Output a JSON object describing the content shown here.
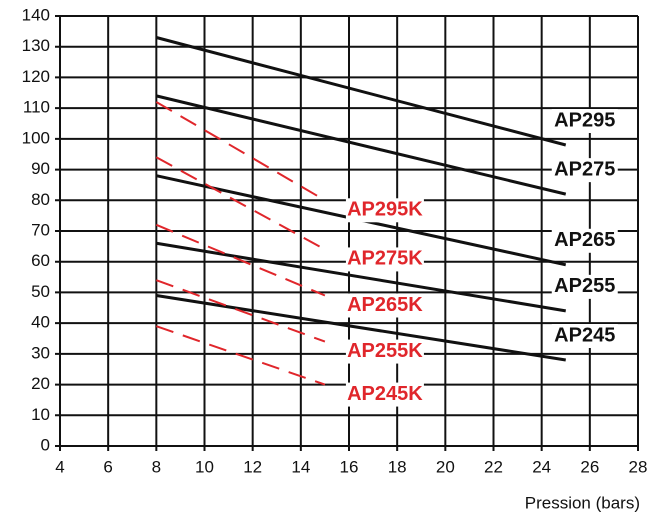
{
  "chart_data": {
    "type": "line",
    "x_label": "Pression (bars)",
    "xlim": [
      4,
      28
    ],
    "xticks": [
      4,
      6,
      8,
      10,
      12,
      14,
      16,
      18,
      20,
      22,
      24,
      26,
      28
    ],
    "ylim": [
      0,
      140
    ],
    "yticks": [
      0,
      10,
      20,
      30,
      40,
      50,
      60,
      70,
      80,
      90,
      100,
      110,
      120,
      130,
      140
    ],
    "grid": true,
    "series": [
      {
        "name": "AP295",
        "color": "#111111",
        "dashed": false,
        "x": [
          8,
          25
        ],
        "values": [
          133,
          98
        ]
      },
      {
        "name": "AP275",
        "color": "#111111",
        "dashed": false,
        "x": [
          8,
          25
        ],
        "values": [
          114,
          82
        ]
      },
      {
        "name": "AP265",
        "color": "#111111",
        "dashed": false,
        "x": [
          8,
          25
        ],
        "values": [
          88,
          59
        ]
      },
      {
        "name": "AP255",
        "color": "#111111",
        "dashed": false,
        "x": [
          8,
          25
        ],
        "values": [
          66,
          44
        ]
      },
      {
        "name": "AP245",
        "color": "#111111",
        "dashed": false,
        "x": [
          8,
          25
        ],
        "values": [
          49,
          28
        ]
      },
      {
        "name": "AP295K",
        "color": "#e0262b",
        "dashed": true,
        "x": [
          8,
          15
        ],
        "values": [
          112,
          80
        ]
      },
      {
        "name": "AP275K",
        "color": "#e0262b",
        "dashed": true,
        "x": [
          8,
          15
        ],
        "values": [
          94,
          64
        ]
      },
      {
        "name": "AP265K",
        "color": "#e0262b",
        "dashed": true,
        "x": [
          8,
          15
        ],
        "values": [
          72,
          49
        ]
      },
      {
        "name": "AP255K",
        "color": "#e0262b",
        "dashed": true,
        "x": [
          8,
          15
        ],
        "values": [
          54,
          34
        ]
      },
      {
        "name": "AP245K",
        "color": "#e0262b",
        "dashed": true,
        "x": [
          8,
          15
        ],
        "values": [
          39,
          20
        ]
      }
    ]
  }
}
